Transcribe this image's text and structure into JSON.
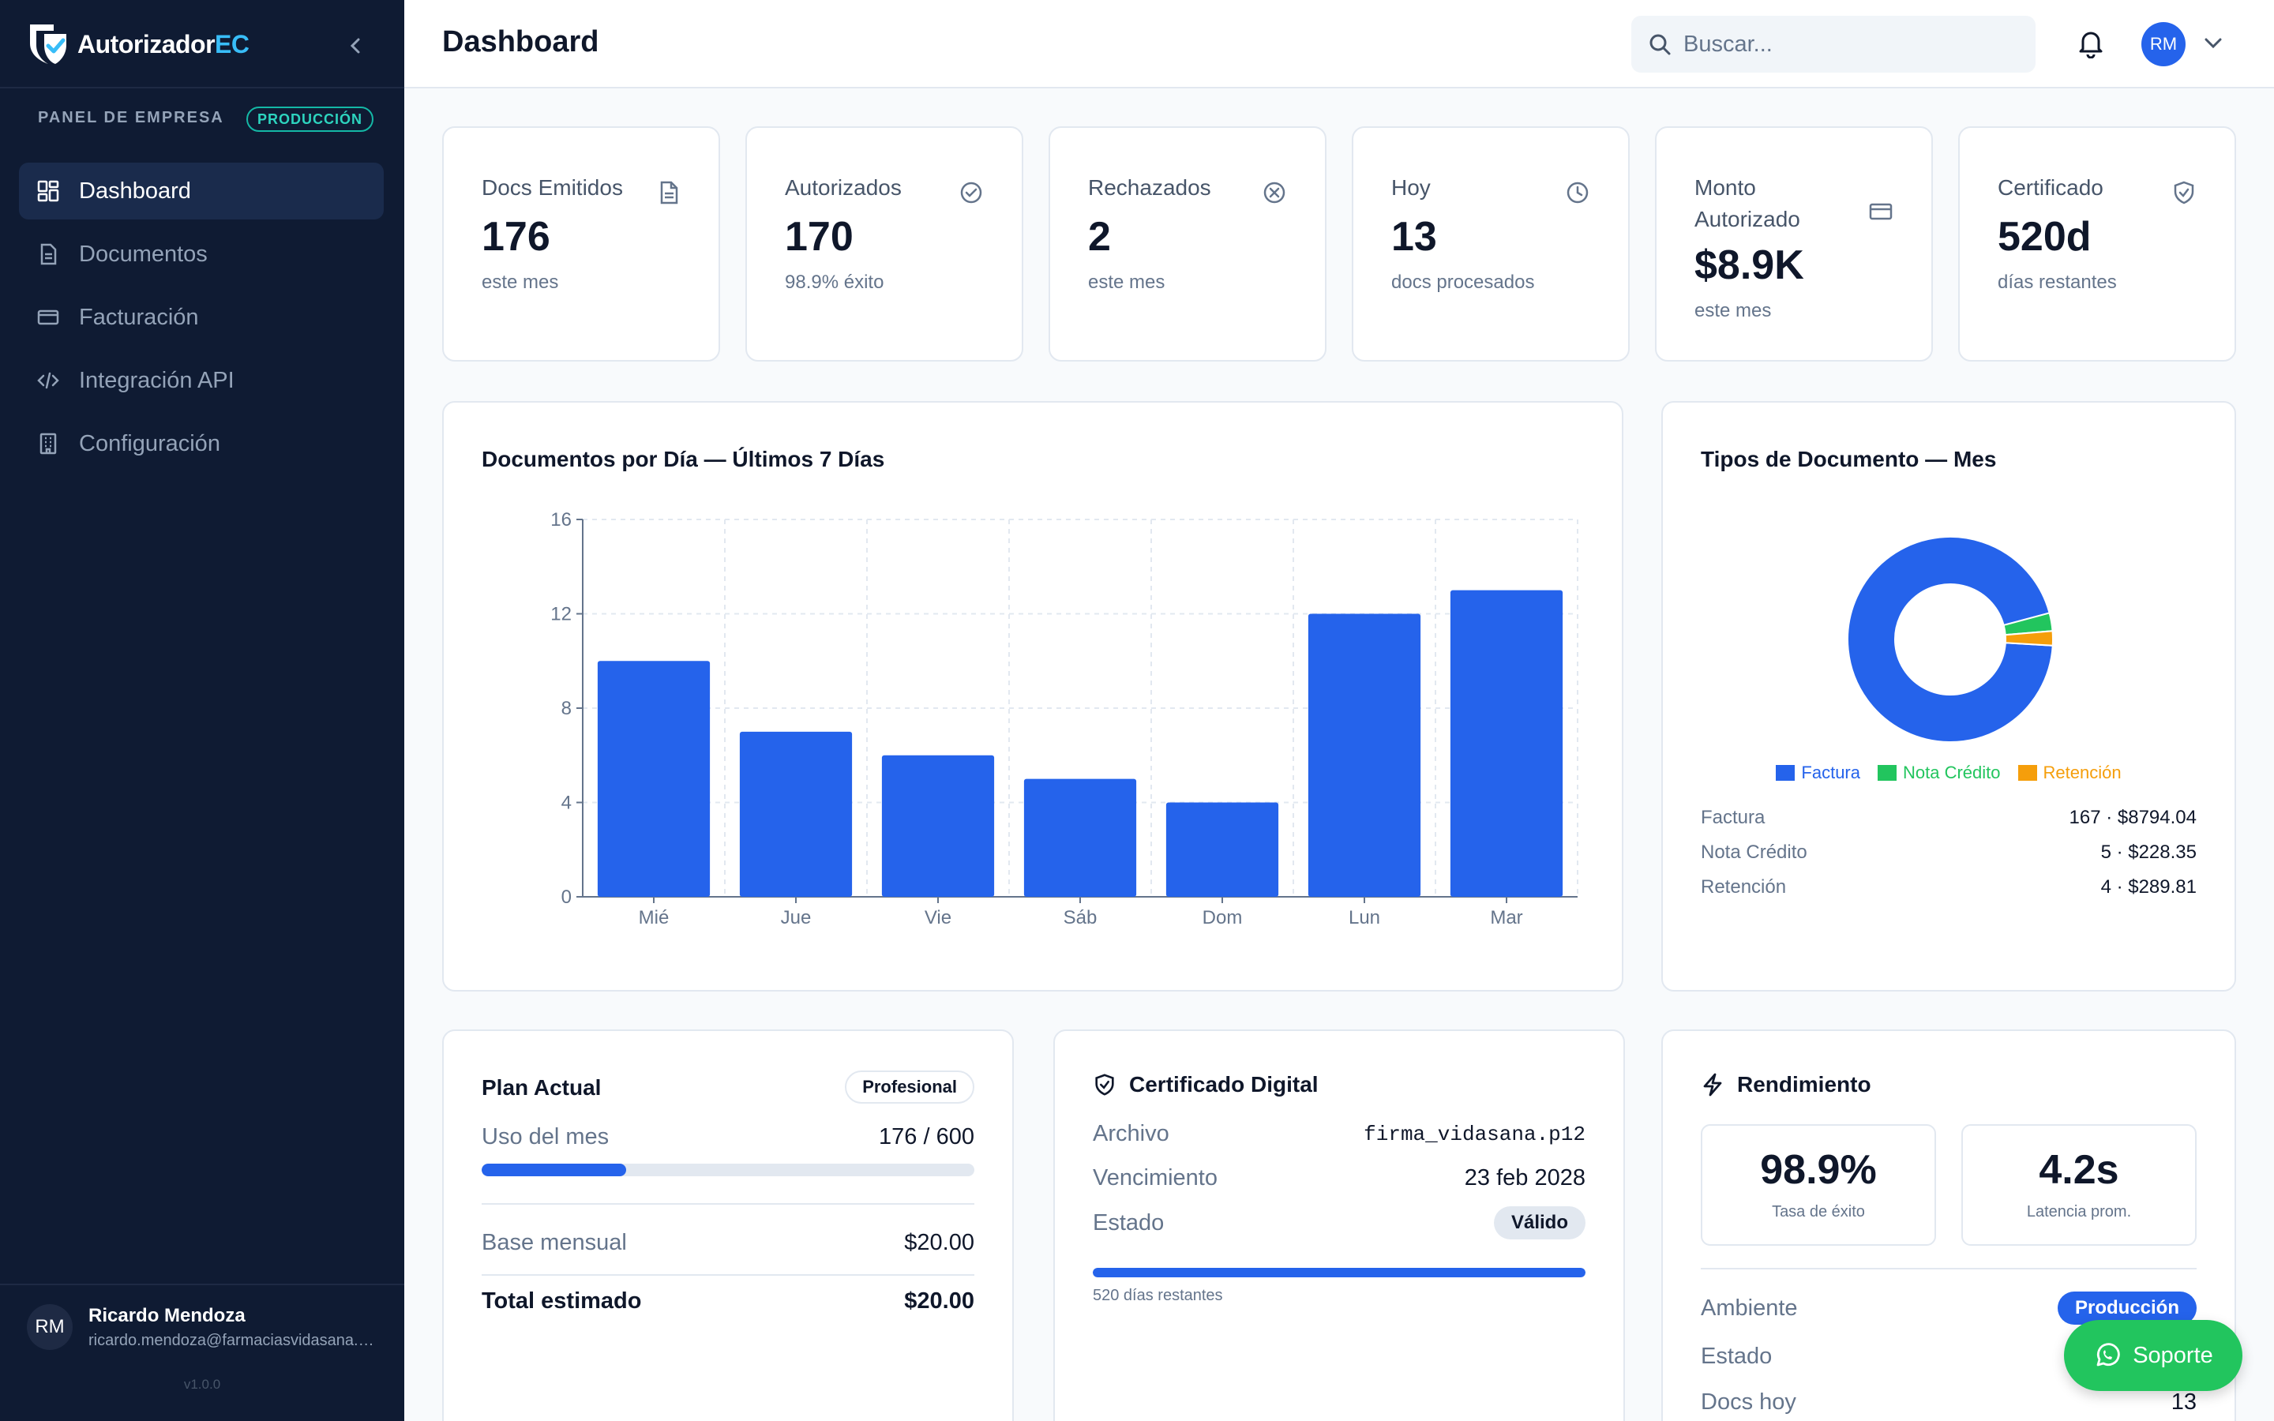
{
  "brand": {
    "name": "Autorizador",
    "accent": "EC"
  },
  "sidebar": {
    "panel_label": "PANEL DE EMPRESA",
    "env_badge": "PRODUCCIÓN",
    "items": [
      {
        "label": "Dashboard",
        "icon": "dashboard-icon",
        "active": true
      },
      {
        "label": "Documentos",
        "icon": "document-icon"
      },
      {
        "label": "Facturación",
        "icon": "card-icon"
      },
      {
        "label": "Integración API",
        "icon": "code-icon"
      },
      {
        "label": "Configuración",
        "icon": "building-icon"
      }
    ],
    "user": {
      "initials": "RM",
      "name": "Ricardo Mendoza",
      "email": "ricardo.mendoza@farmaciasvidasana.com"
    },
    "version": "v1.0.0"
  },
  "header": {
    "title": "Dashboard",
    "search_placeholder": "Buscar...",
    "avatar": "RM"
  },
  "stats": [
    {
      "label": "Docs Emitidos",
      "value": "176",
      "sub": "este mes",
      "icon": "file-icon"
    },
    {
      "label": "Autorizados",
      "value": "170",
      "sub": "98.9% éxito",
      "icon": "check-circle-icon"
    },
    {
      "label": "Rechazados",
      "value": "2",
      "sub": "este mes",
      "icon": "x-circle-icon"
    },
    {
      "label": "Hoy",
      "value": "13",
      "sub": "docs procesados",
      "icon": "clock-icon"
    },
    {
      "label": "Monto Autorizado",
      "value": "$8.9K",
      "sub": "este mes",
      "icon": "card-icon"
    },
    {
      "label": "Certificado",
      "value": "520d",
      "sub": "días restantes",
      "icon": "shield-icon"
    }
  ],
  "bar_chart_title": "Documentos por Día — Últimos 7 Días",
  "donut": {
    "title": "Tipos de Documento — Mes",
    "legend": [
      "Factura",
      "Nota Crédito",
      "Retención"
    ],
    "breakdown": [
      {
        "label": "Factura",
        "value": "167 · $8794.04"
      },
      {
        "label": "Nota Crédito",
        "value": "5 · $228.35"
      },
      {
        "label": "Retención",
        "value": "4 · $289.81"
      }
    ]
  },
  "chart_data": [
    {
      "type": "bar",
      "title": "Documentos por Día — Últimos 7 Días",
      "categories": [
        "Mié",
        "Jue",
        "Vie",
        "Sáb",
        "Dom",
        "Lun",
        "Mar"
      ],
      "values": [
        10,
        7,
        6,
        5,
        4,
        12,
        13
      ],
      "ylim": [
        0,
        16
      ],
      "yticks": [
        0,
        4,
        8,
        12,
        16
      ],
      "grid": true,
      "color": "#2563eb"
    },
    {
      "type": "pie",
      "title": "Tipos de Documento — Mes",
      "categories": [
        "Factura",
        "Nota Crédito",
        "Retención"
      ],
      "values": [
        167,
        5,
        4
      ],
      "colors": [
        "#2563eb",
        "#22c55e",
        "#f59e0b"
      ],
      "legend": "bottom"
    }
  ],
  "plan": {
    "title": "Plan Actual",
    "badge": "Profesional",
    "usage_label": "Uso del mes",
    "usage_value": "176 / 600",
    "usage_fraction": 0.293,
    "base_label": "Base mensual",
    "base_value": "$20.00",
    "total_label": "Total estimado",
    "total_value": "$20.00"
  },
  "cert": {
    "title": "Certificado Digital",
    "file_label": "Archivo",
    "file_value": "firma_vidasana.p12",
    "expiry_label": "Vencimiento",
    "expiry_value": "23 feb 2028",
    "status_label": "Estado",
    "status_value": "Válido",
    "remaining": "520 días restantes",
    "remaining_fraction": 1.0
  },
  "performance": {
    "title": "Rendimiento",
    "success_value": "98.9%",
    "success_label": "Tasa de éxito",
    "latency_value": "4.2s",
    "latency_label": "Latencia prom.",
    "env_label": "Ambiente",
    "env_value": "Producción",
    "state_label": "Estado",
    "docs_label": "Docs hoy",
    "docs_value": "13"
  },
  "support": {
    "label": "Soporte"
  },
  "colors": {
    "sidebar": "#0f1b33",
    "primary": "#2563eb",
    "success": "#22c55e",
    "warning": "#f59e0b"
  }
}
